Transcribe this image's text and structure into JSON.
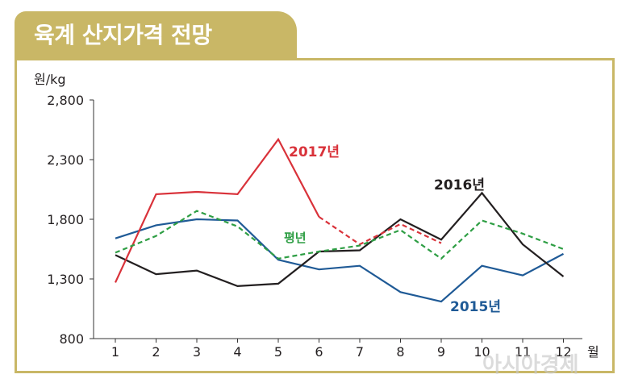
{
  "header": {
    "title": "육계 산지가격 전망"
  },
  "watermark": "아시아경제",
  "chart_data": {
    "type": "line",
    "ylabel": "원/kg",
    "xlabel": "월",
    "ylim": [
      800,
      2800
    ],
    "yticks": [
      "800",
      "1,300",
      "1,800",
      "2,300",
      "2,800"
    ],
    "ytick_values": [
      800,
      1300,
      1800,
      2300,
      2800
    ],
    "x": [
      1,
      2,
      3,
      4,
      5,
      6,
      7,
      8,
      9,
      10,
      11,
      12
    ],
    "series": [
      {
        "name": "2015년",
        "color": "#1f5a96",
        "dash": false,
        "values": [
          1640,
          1750,
          1800,
          1790,
          1460,
          1380,
          1410,
          1190,
          1110,
          1410,
          1330,
          1510
        ]
      },
      {
        "name": "2016년",
        "color": "#231f20",
        "dash": false,
        "values": [
          1500,
          1340,
          1370,
          1240,
          1260,
          1530,
          1540,
          1800,
          1630,
          2020,
          1590,
          1320
        ]
      },
      {
        "name": "2017년",
        "color": "#d9323a",
        "dash": false,
        "values": [
          1270,
          2010,
          2030,
          2010,
          2470,
          1820,
          null,
          null,
          null,
          null,
          null,
          null
        ]
      },
      {
        "name": "2017년",
        "color": "#d9323a",
        "dash": true,
        "values": [
          null,
          null,
          null,
          null,
          null,
          1820,
          1590,
          1760,
          1600,
          null,
          null,
          null
        ]
      },
      {
        "name": "평년",
        "color": "#2e9e44",
        "dash": true,
        "values": [
          1520,
          1660,
          1870,
          1740,
          1470,
          1530,
          1580,
          1710,
          1470,
          1790,
          1680,
          1550
        ]
      }
    ],
    "labels": [
      "2017년",
      "2016년",
      "평년",
      "2015년"
    ]
  }
}
